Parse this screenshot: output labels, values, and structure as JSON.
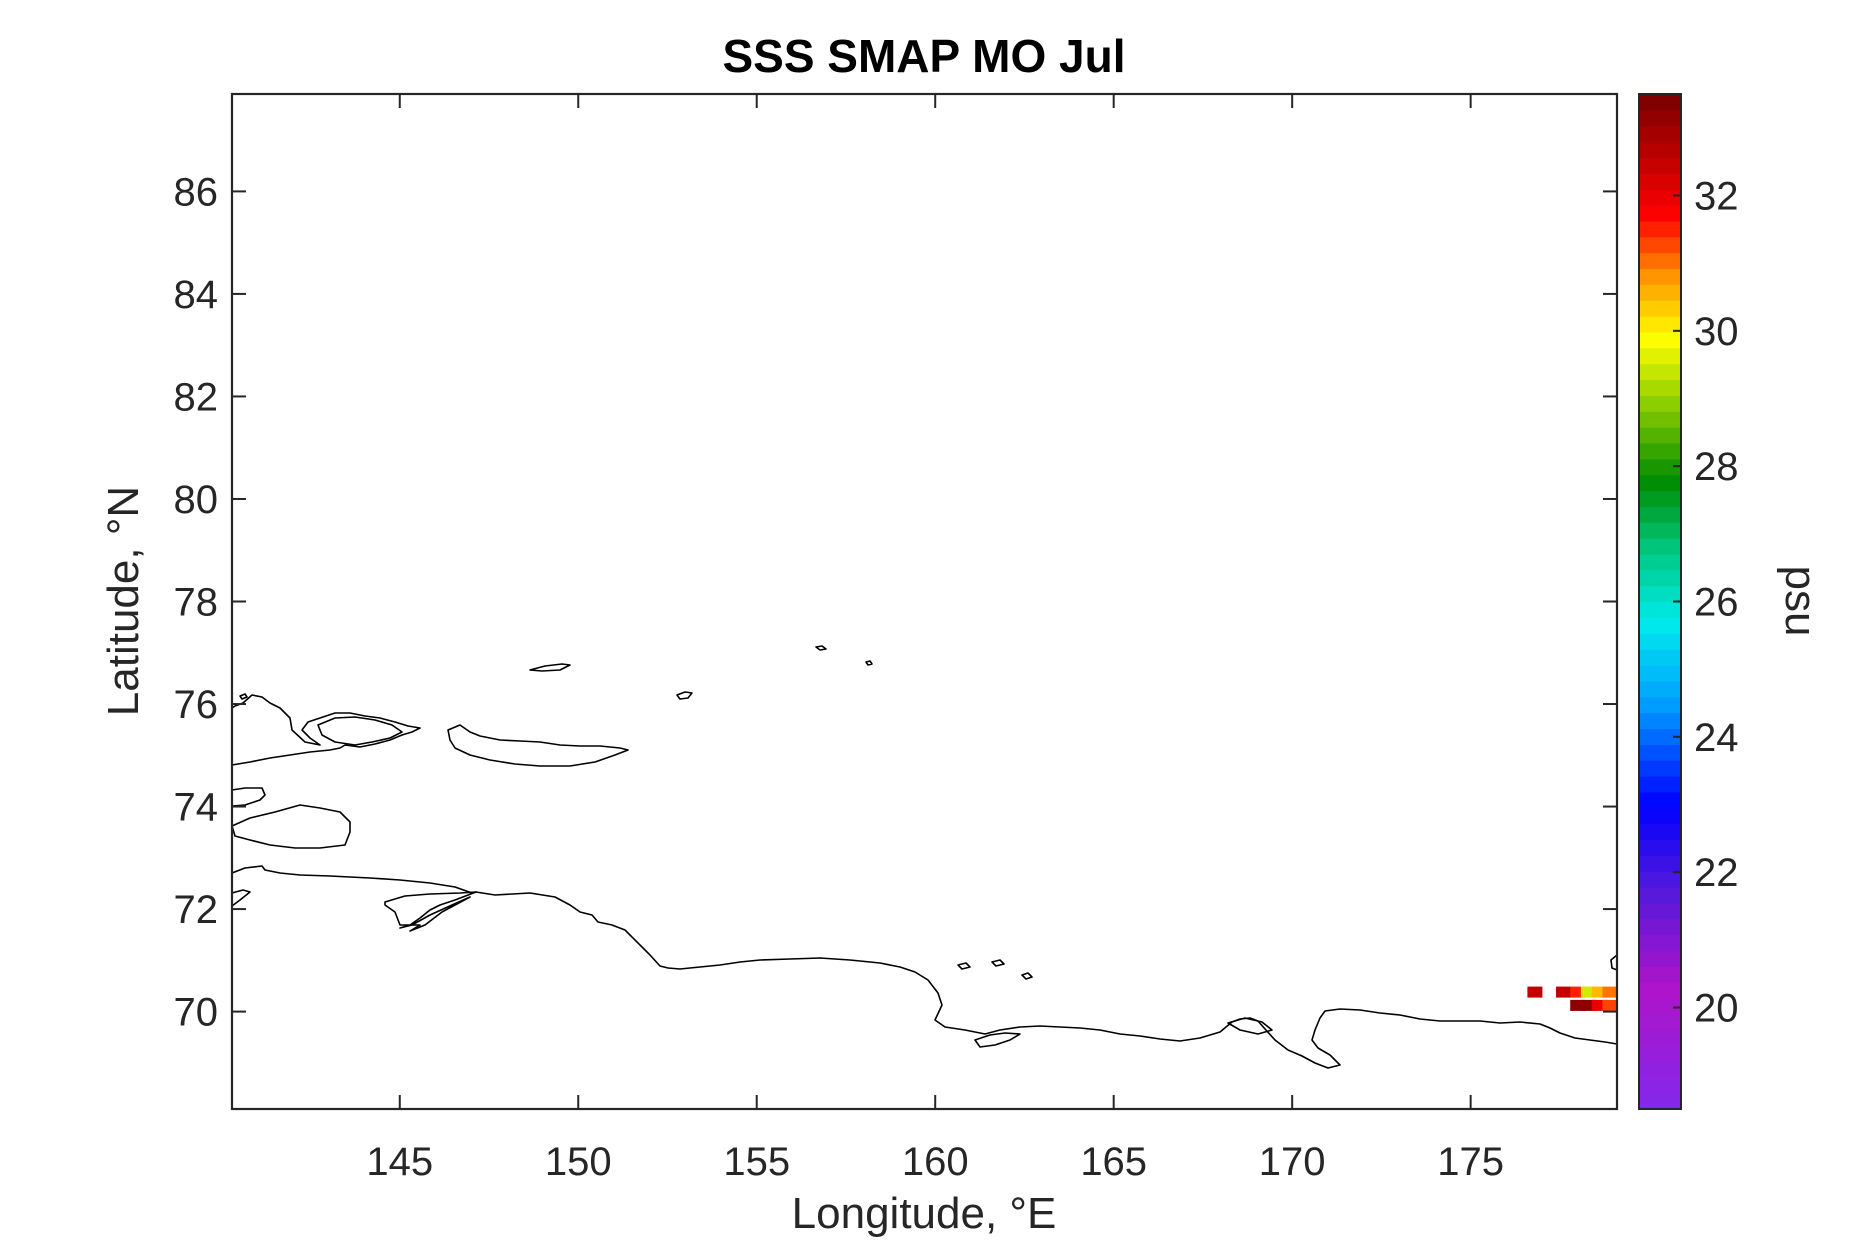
{
  "chart_data": {
    "type": "heatmap",
    "title": "SSS SMAP MO Jul",
    "xlabel": "Longitude, °E",
    "ylabel": "Latitude, °N",
    "xlim": [
      140.3,
      179.1
    ],
    "ylim": [
      68.1,
      87.9
    ],
    "xticks": [
      145,
      150,
      155,
      160,
      165,
      170,
      175
    ],
    "yticks": [
      70,
      72,
      74,
      76,
      78,
      80,
      82,
      84,
      86
    ],
    "colorbar": {
      "label": "psu",
      "range": [
        18.5,
        33.5
      ],
      "ticks": [
        20,
        22,
        24,
        26,
        28,
        30,
        32
      ],
      "colormap": "jet-like (purple-blue-cyan-green-yellow-red-darkred)"
    },
    "cells": [
      {
        "lon": 176.8,
        "lat": 70.38,
        "psu": 32.5
      },
      {
        "lon": 177.6,
        "lat": 70.38,
        "psu": 32.5
      },
      {
        "lon": 178.0,
        "lat": 70.38,
        "psu": 31.5
      },
      {
        "lon": 178.3,
        "lat": 70.38,
        "psu": 29.5
      },
      {
        "lon": 178.6,
        "lat": 70.38,
        "psu": 30.5
      },
      {
        "lon": 178.9,
        "lat": 70.38,
        "psu": 31.0
      },
      {
        "lon": 178.0,
        "lat": 70.12,
        "psu": 33.2
      },
      {
        "lon": 178.3,
        "lat": 70.12,
        "psu": 33.2
      },
      {
        "lon": 178.6,
        "lat": 70.12,
        "psu": 32.0
      },
      {
        "lon": 178.9,
        "lat": 70.12,
        "psu": 31.3
      }
    ]
  }
}
